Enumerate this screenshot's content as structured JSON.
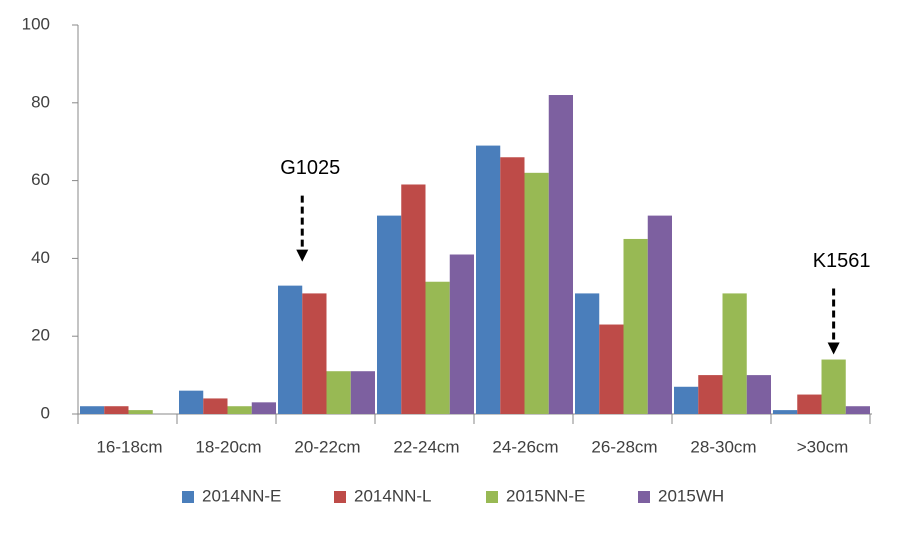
{
  "chart_data": {
    "type": "bar",
    "categories": [
      "16-18cm",
      "18-20cm",
      "20-22cm",
      "22-24cm",
      "24-26cm",
      "26-28cm",
      "28-30cm",
      ">30cm"
    ],
    "series": [
      {
        "name": "2014NN-E",
        "color": "#4a7ebb",
        "values": [
          2,
          6,
          33,
          51,
          69,
          31,
          7,
          1
        ]
      },
      {
        "name": "2014NN-L",
        "color": "#be4b48",
        "values": [
          2,
          4,
          31,
          59,
          66,
          23,
          10,
          5
        ]
      },
      {
        "name": "2015NN-E",
        "color": "#98b954",
        "values": [
          1,
          2,
          11,
          34,
          62,
          45,
          31,
          14
        ]
      },
      {
        "name": "2015WH",
        "color": "#7d60a0",
        "values": [
          0,
          3,
          11,
          41,
          82,
          51,
          10,
          2
        ]
      }
    ],
    "ylim": [
      0,
      100
    ],
    "yticks": [
      0,
      20,
      40,
      60,
      80,
      100
    ],
    "grid": false,
    "legend": "bottom",
    "annotations": [
      "G1025",
      "K1561"
    ]
  }
}
